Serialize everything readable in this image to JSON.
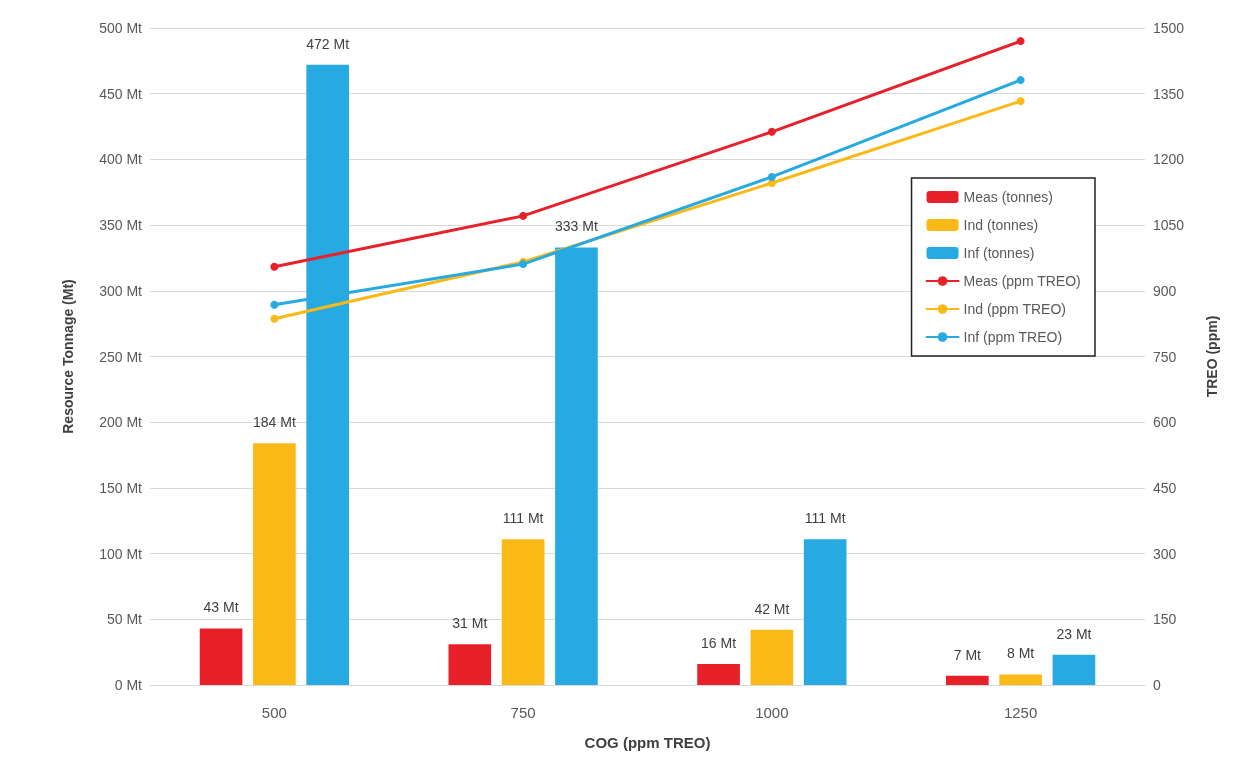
{
  "chart_data": {
    "type": "bar",
    "xlabel": "COG (ppm TREO)",
    "ylabel": "Resource Tonnage (Mt)",
    "y2label": "TREO (ppm)",
    "categories": [
      "500",
      "750",
      "1000",
      "1250"
    ],
    "series": [
      {
        "name": "Meas (tonnes)",
        "color": "#e8202a",
        "values": [
          43,
          31,
          16,
          7
        ],
        "value_labels": [
          "43 Mt",
          "31 Mt",
          "16 Mt",
          "7 Mt"
        ]
      },
      {
        "name": "Ind (tonnes)",
        "color": "#fbb917",
        "values": [
          184,
          111,
          42,
          8
        ],
        "value_labels": [
          "184 Mt",
          "111 Mt",
          "42 Mt",
          "8 Mt"
        ]
      },
      {
        "name": "Inf (tonnes)",
        "color": "#27aae1",
        "values": [
          472,
          333,
          111,
          23
        ],
        "value_labels": [
          "472 Mt",
          "333 Mt",
          "111 Mt",
          "23 Mt"
        ]
      },
      {
        "name": "Meas (ppm TREO)",
        "type": "line",
        "axis": "y2",
        "color": "#e8202a",
        "values": [
          955,
          1071,
          1263,
          1470
        ]
      },
      {
        "name": "Ind (ppm TREO)",
        "type": "line",
        "axis": "y2",
        "color": "#fbb917",
        "values": [
          836,
          966,
          1146,
          1333
        ]
      },
      {
        "name": "Inf (ppm TREO)",
        "type": "line",
        "axis": "y2",
        "color": "#27aae1",
        "values": [
          868,
          961,
          1160,
          1381
        ]
      }
    ],
    "ylim": [
      0,
      500
    ],
    "yticks": [
      {
        "value": 0,
        "label": "0 Mt"
      },
      {
        "value": 50,
        "label": "50 Mt"
      },
      {
        "value": 100,
        "label": "100 Mt"
      },
      {
        "value": 150,
        "label": "150 Mt"
      },
      {
        "value": 200,
        "label": "200 Mt"
      },
      {
        "value": 250,
        "label": "250 Mt"
      },
      {
        "value": 300,
        "label": "300 Mt"
      },
      {
        "value": 350,
        "label": "350 Mt"
      },
      {
        "value": 400,
        "label": "400 Mt"
      },
      {
        "value": 450,
        "label": "450 Mt"
      },
      {
        "value": 500,
        "label": "500 Mt"
      }
    ],
    "y2lim": [
      0,
      1500
    ],
    "y2ticks": [
      0,
      150,
      300,
      450,
      600,
      750,
      900,
      1050,
      1200,
      1350,
      1500
    ],
    "grid": "y",
    "legend": "right",
    "marker": "circle",
    "line_style": "solid"
  }
}
